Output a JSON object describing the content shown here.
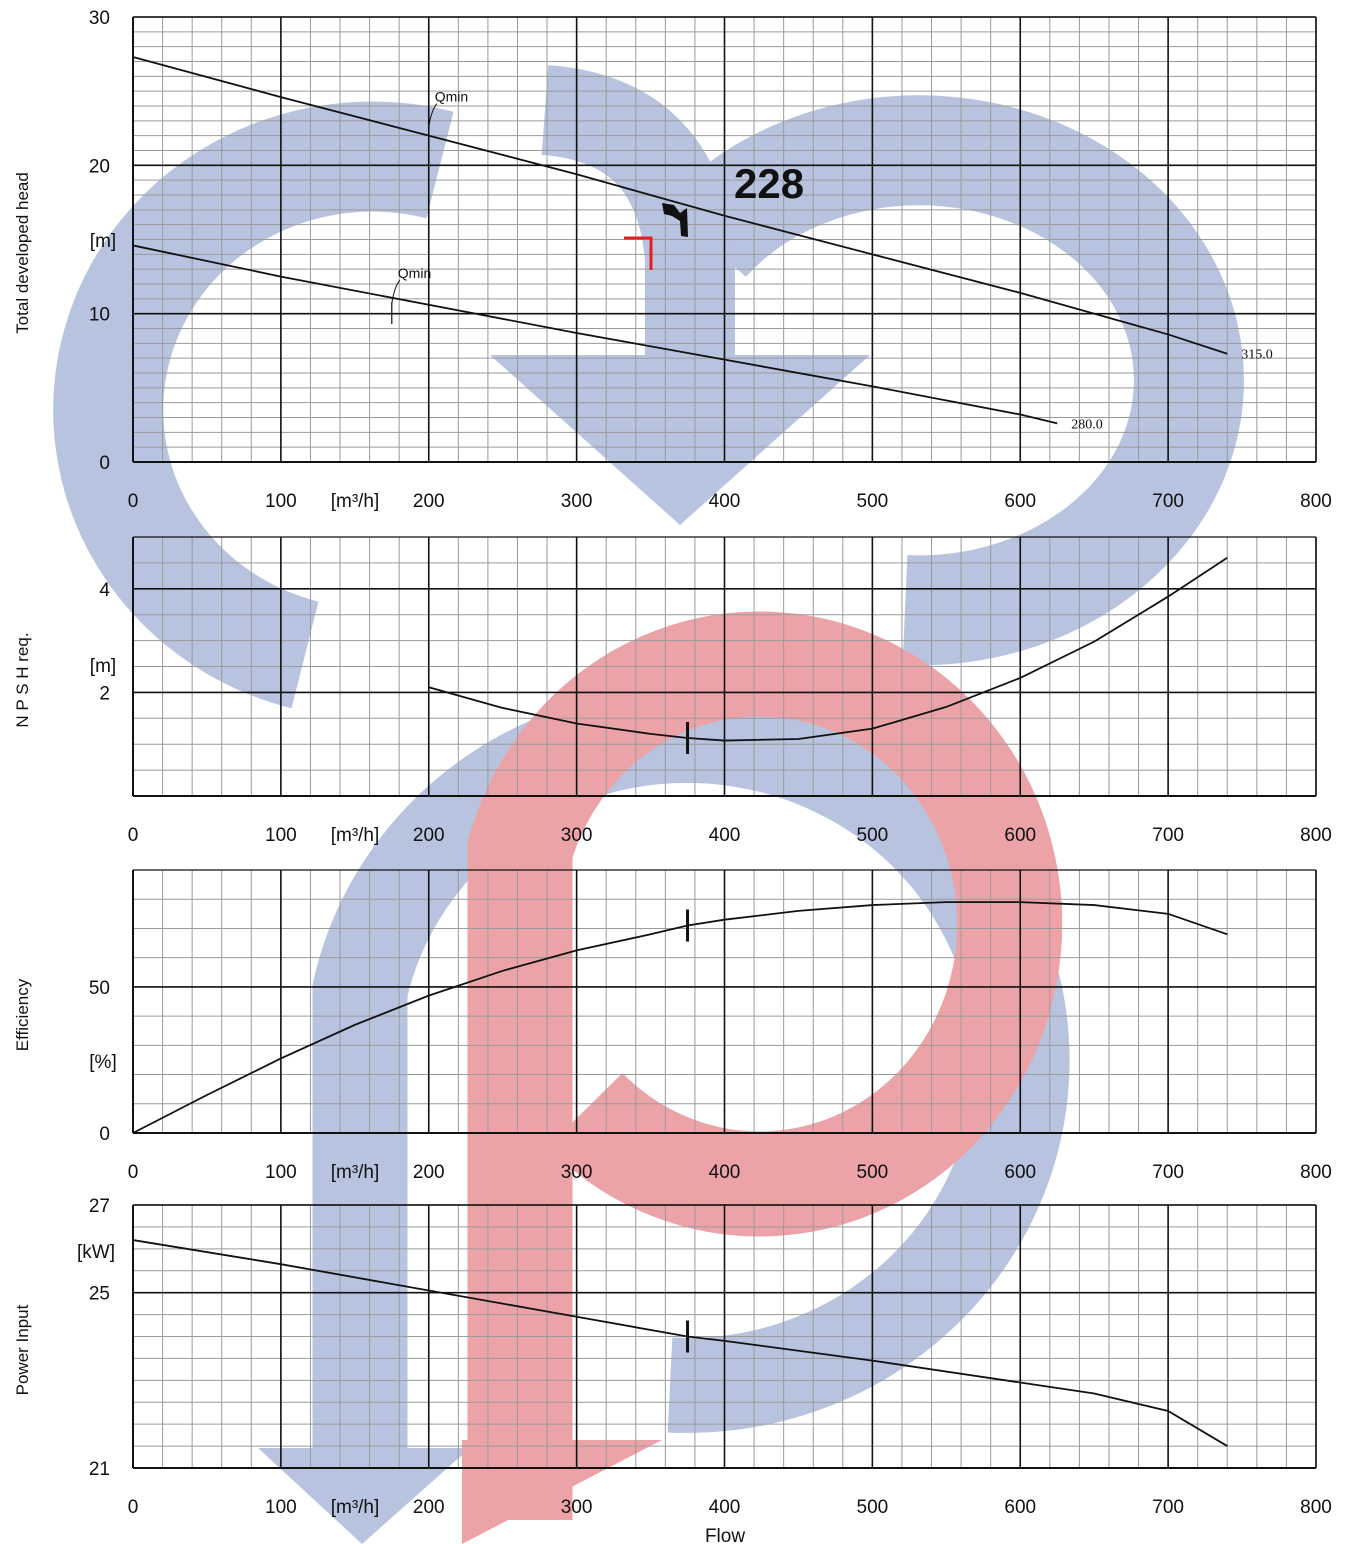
{
  "colors": {
    "watermark_blue": "#b7c3df",
    "watermark_red": "#eba3a8",
    "major_grid": "#111111",
    "minor_grid": "#9a9a9a",
    "curve": "#111111",
    "red_mark": "#e02020"
  },
  "flow_axis": {
    "label": "Flow",
    "unit_label": "[m³/h]",
    "ticks": [
      "0",
      "100",
      "200",
      "300",
      "400",
      "500",
      "600",
      "700",
      "800"
    ]
  },
  "chart_data": [
    {
      "type": "line",
      "ylabel": "Total developed head",
      "unit": "[m]",
      "xlim": [
        0,
        800
      ],
      "ylim": [
        0,
        30
      ],
      "y_ticks": [
        "0",
        "10",
        "20",
        "30"
      ],
      "grid": true,
      "annotation": "228",
      "series": [
        {
          "name": "315.0",
          "x": [
            0,
            100,
            200,
            300,
            375,
            400,
            500,
            600,
            700,
            740
          ],
          "y": [
            27.3,
            24.6,
            22.0,
            19.4,
            17.3,
            16.6,
            14.0,
            11.4,
            8.6,
            7.3
          ]
        },
        {
          "name": "280.0",
          "x": [
            0,
            100,
            200,
            300,
            400,
            500,
            600,
            625
          ],
          "y": [
            14.6,
            12.5,
            10.6,
            8.7,
            6.9,
            5.1,
            3.2,
            2.6
          ]
        }
      ],
      "markers": [
        {
          "label": "Qmin",
          "x": 200,
          "y": 22.0
        },
        {
          "label": "Qmin",
          "x": 175,
          "y": 10.1
        }
      ]
    },
    {
      "type": "line",
      "ylabel": "N P S H req.",
      "unit": "[m]",
      "xlim": [
        0,
        800
      ],
      "ylim": [
        0,
        5
      ],
      "y_ticks": [
        "2",
        "4"
      ],
      "grid": true,
      "series": [
        {
          "x": [
            200,
            250,
            300,
            350,
            375,
            400,
            450,
            500,
            550,
            600,
            650,
            700,
            740
          ],
          "y": [
            2.1,
            1.7,
            1.4,
            1.2,
            1.12,
            1.07,
            1.1,
            1.3,
            1.72,
            2.28,
            2.98,
            3.85,
            4.6
          ]
        }
      ],
      "operating_point": {
        "x": 375,
        "y": 1.12
      }
    },
    {
      "type": "line",
      "ylabel": "Efficiency",
      "unit": "[%]",
      "xlim": [
        0,
        800
      ],
      "ylim": [
        0,
        90
      ],
      "y_ticks": [
        "0",
        "50"
      ],
      "grid": true,
      "series": [
        {
          "x": [
            0,
            50,
            100,
            150,
            200,
            250,
            300,
            350,
            375,
            400,
            450,
            500,
            550,
            600,
            650,
            700,
            740
          ],
          "y": [
            0,
            13,
            25.5,
            37,
            47,
            55.5,
            62.5,
            68,
            71,
            73,
            76,
            78,
            79,
            79,
            78,
            75,
            68
          ]
        }
      ],
      "operating_point": {
        "x": 375,
        "y": 71
      }
    },
    {
      "type": "line",
      "ylabel": "Power Input",
      "unit": "[kW]",
      "xlim": [
        0,
        800
      ],
      "ylim": [
        21,
        27
      ],
      "y_ticks": [
        "21",
        "25",
        "27"
      ],
      "grid": true,
      "series": [
        {
          "x": [
            0,
            100,
            200,
            300,
            375,
            400,
            500,
            600,
            650,
            700,
            740
          ],
          "y": [
            26.2,
            25.65,
            25.05,
            24.45,
            24.0,
            23.9,
            23.45,
            22.95,
            22.7,
            22.3,
            21.5
          ]
        }
      ],
      "operating_point": {
        "x": 375,
        "y": 24.0
      }
    }
  ]
}
